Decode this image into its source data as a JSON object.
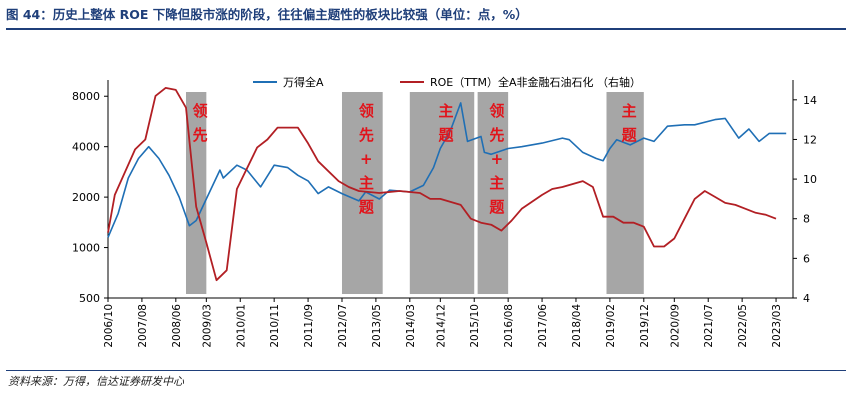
{
  "figure": {
    "title": "图 44：历史上整体 ROE 下降但股市涨的阶段，往往偏主题性的板块比较强（单位：点，%）",
    "source": "资料来源：万得，信达证券研发中心"
  },
  "chart_data": {
    "type": "line",
    "x_ticks": [
      "2006/10",
      "2007/08",
      "2008/06",
      "2009/03",
      "2010/01",
      "2010/11",
      "2011/09",
      "2012/07",
      "2013/05",
      "2014/03",
      "2014/12",
      "2015/10",
      "2016/08",
      "2017/06",
      "2018/04",
      "2019/02",
      "2019/12",
      "2020/09",
      "2021/07",
      "2022/05",
      "2023/03"
    ],
    "y_left": {
      "scale": "log",
      "range": [
        500,
        10000
      ],
      "ticks": [
        500,
        1000,
        2000,
        4000,
        8000
      ]
    },
    "y_right": {
      "range": [
        4,
        15
      ],
      "ticks": [
        4,
        6,
        8,
        10,
        12,
        14
      ]
    },
    "legend_position": "top",
    "series": [
      {
        "name": "万得全A",
        "axis": "left",
        "color": "#1f6fb5",
        "points": [
          [
            "2006/10",
            1150
          ],
          [
            "2007/01",
            1600
          ],
          [
            "2007/04",
            2600
          ],
          [
            "2007/07",
            3400
          ],
          [
            "2007/10",
            4000
          ],
          [
            "2008/01",
            3400
          ],
          [
            "2008/04",
            2700
          ],
          [
            "2008/07",
            2000
          ],
          [
            "2008/10",
            1350
          ],
          [
            "2008/12",
            1450
          ],
          [
            "2009/03",
            1950
          ],
          [
            "2009/07",
            2900
          ],
          [
            "2009/08",
            2600
          ],
          [
            "2009/12",
            3100
          ],
          [
            "2010/03",
            2900
          ],
          [
            "2010/07",
            2300
          ],
          [
            "2010/11",
            3100
          ],
          [
            "2011/03",
            3000
          ],
          [
            "2011/06",
            2700
          ],
          [
            "2011/09",
            2500
          ],
          [
            "2011/12",
            2100
          ],
          [
            "2012/03",
            2300
          ],
          [
            "2012/07",
            2100
          ],
          [
            "2012/12",
            1900
          ],
          [
            "2013/02",
            2150
          ],
          [
            "2013/06",
            1950
          ],
          [
            "2013/09",
            2200
          ],
          [
            "2014/03",
            2150
          ],
          [
            "2014/07",
            2350
          ],
          [
            "2014/10",
            3000
          ],
          [
            "2014/12",
            3900
          ],
          [
            "2015/03",
            5000
          ],
          [
            "2015/06",
            7300
          ],
          [
            "2015/08",
            4300
          ],
          [
            "2015/12",
            4600
          ],
          [
            "2016/01",
            3700
          ],
          [
            "2016/03",
            3600
          ],
          [
            "2016/08",
            3900
          ],
          [
            "2016/12",
            4000
          ],
          [
            "2017/06",
            4200
          ],
          [
            "2017/12",
            4500
          ],
          [
            "2018/02",
            4400
          ],
          [
            "2018/06",
            3700
          ],
          [
            "2018/10",
            3400
          ],
          [
            "2018/12",
            3300
          ],
          [
            "2019/02",
            3900
          ],
          [
            "2019/04",
            4400
          ],
          [
            "2019/08",
            4100
          ],
          [
            "2019/12",
            4500
          ],
          [
            "2020/03",
            4300
          ],
          [
            "2020/07",
            5300
          ],
          [
            "2020/12",
            5400
          ],
          [
            "2021/03",
            5400
          ],
          [
            "2021/09",
            5800
          ],
          [
            "2021/12",
            5900
          ],
          [
            "2022/04",
            4500
          ],
          [
            "2022/07",
            5100
          ],
          [
            "2022/10",
            4300
          ],
          [
            "2023/01",
            4800
          ],
          [
            "2023/06",
            4800
          ]
        ]
      },
      {
        "name": "ROE（TTM）全A非金融石油石化 （右轴）",
        "axis": "right",
        "color": "#b21f24",
        "points": [
          [
            "2006/10",
            7.3
          ],
          [
            "2006/12",
            9.2
          ],
          [
            "2007/06",
            11.5
          ],
          [
            "2007/09",
            12.0
          ],
          [
            "2007/12",
            14.2
          ],
          [
            "2008/03",
            14.6
          ],
          [
            "2008/06",
            14.5
          ],
          [
            "2008/09",
            13.6
          ],
          [
            "2008/12",
            8.6
          ],
          [
            "2009/03",
            6.8
          ],
          [
            "2009/06",
            4.9
          ],
          [
            "2009/09",
            5.4
          ],
          [
            "2009/12",
            9.5
          ],
          [
            "2010/06",
            11.6
          ],
          [
            "2010/09",
            12.0
          ],
          [
            "2010/12",
            12.6
          ],
          [
            "2011/06",
            12.6
          ],
          [
            "2011/09",
            11.8
          ],
          [
            "2011/12",
            10.9
          ],
          [
            "2012/06",
            9.9
          ],
          [
            "2012/09",
            9.6
          ],
          [
            "2012/12",
            9.4
          ],
          [
            "2013/06",
            9.3
          ],
          [
            "2013/12",
            9.4
          ],
          [
            "2014/06",
            9.3
          ],
          [
            "2014/09",
            9.0
          ],
          [
            "2014/12",
            9.0
          ],
          [
            "2015/06",
            8.7
          ],
          [
            "2015/09",
            8.0
          ],
          [
            "2015/12",
            7.8
          ],
          [
            "2016/03",
            7.7
          ],
          [
            "2016/06",
            7.4
          ],
          [
            "2016/09",
            7.9
          ],
          [
            "2016/12",
            8.5
          ],
          [
            "2017/06",
            9.2
          ],
          [
            "2017/09",
            9.5
          ],
          [
            "2017/12",
            9.6
          ],
          [
            "2018/06",
            9.9
          ],
          [
            "2018/09",
            9.6
          ],
          [
            "2018/12",
            8.1
          ],
          [
            "2019/03",
            8.1
          ],
          [
            "2019/06",
            7.8
          ],
          [
            "2019/09",
            7.8
          ],
          [
            "2019/12",
            7.6
          ],
          [
            "2020/03",
            6.6
          ],
          [
            "2020/06",
            6.6
          ],
          [
            "2020/09",
            7.0
          ],
          [
            "2020/12",
            8.0
          ],
          [
            "2021/03",
            9.0
          ],
          [
            "2021/06",
            9.4
          ],
          [
            "2021/09",
            9.1
          ],
          [
            "2021/12",
            8.8
          ],
          [
            "2022/03",
            8.7
          ],
          [
            "2022/06",
            8.5
          ],
          [
            "2022/09",
            8.3
          ],
          [
            "2022/12",
            8.2
          ],
          [
            "2023/03",
            8.0
          ]
        ]
      }
    ],
    "shaded_periods": [
      {
        "start": "2008/09",
        "end": "2009/03",
        "label_lines": [
          "领",
          "先"
        ]
      },
      {
        "start": "2012/07",
        "end": "2013/07",
        "label_lines": [
          "领",
          "先",
          "+",
          "主",
          "题"
        ]
      },
      {
        "start": "2014/03",
        "end": "2015/10",
        "label_lines": [
          "主",
          "题"
        ]
      },
      {
        "start": "2015/11",
        "end": "2016/08",
        "label_lines": [
          "领",
          "先",
          "+",
          "主",
          "题"
        ]
      },
      {
        "start": "2019/01",
        "end": "2019/12",
        "label_lines": [
          "主",
          "题"
        ]
      }
    ]
  }
}
